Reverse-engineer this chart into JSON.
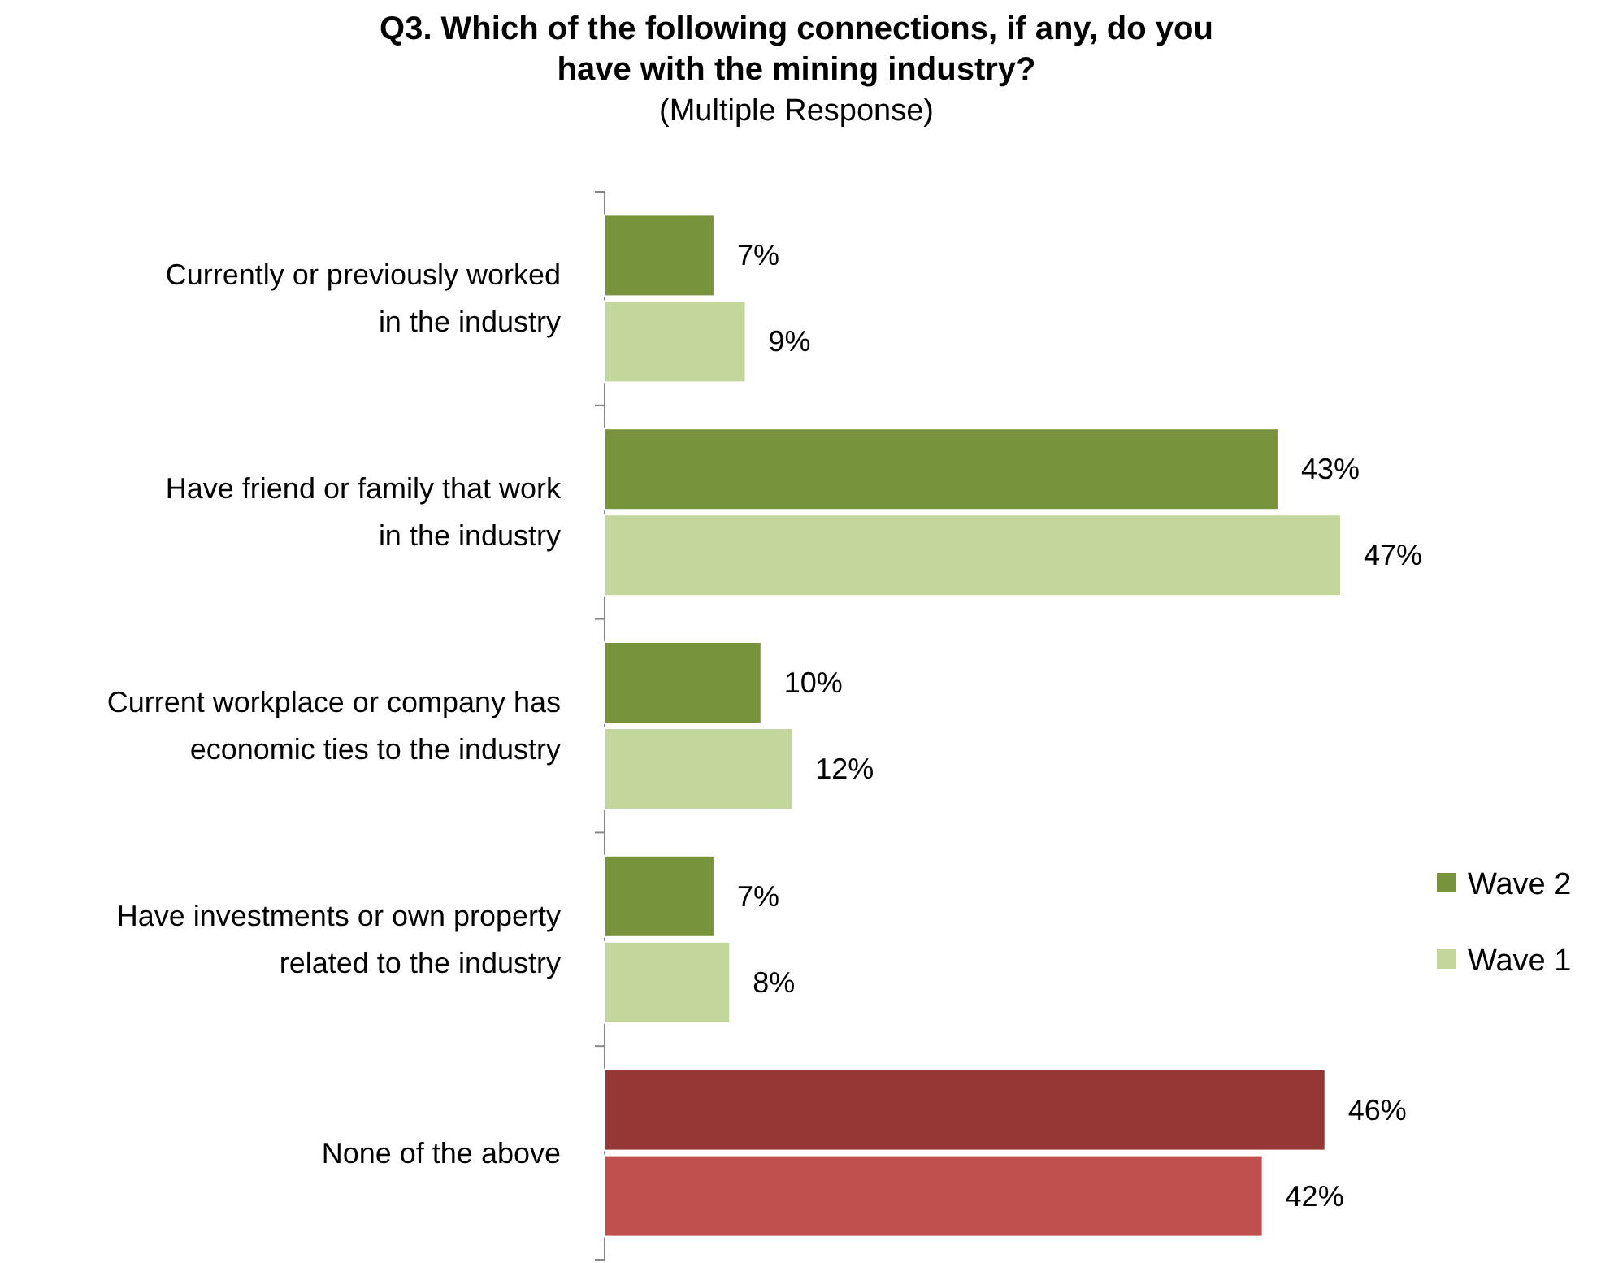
{
  "chart_data": {
    "type": "bar",
    "orientation": "horizontal",
    "title": "Q3. Which of the following connections, if any, do you have with the mining industry?",
    "subtitle": "(Multiple Response)",
    "categories": [
      "Currently or previously worked in the industry",
      "Have friend or family that work in the industry",
      "Current workplace or company has economic ties to the industry",
      "Have investments or own property related to the industry",
      "None of the above"
    ],
    "series": [
      {
        "name": "Wave 2",
        "color": "#77933c",
        "colors": [
          "#77933c",
          "#77933c",
          "#77933c",
          "#77933c",
          "#953735"
        ],
        "values": [
          7,
          43,
          10,
          7,
          46
        ],
        "value_labels": [
          "7%",
          "43%",
          "10%",
          "7%",
          "46%"
        ]
      },
      {
        "name": "Wave 1",
        "color": "#c3d69b",
        "colors": [
          "#c3d69b",
          "#c3d69b",
          "#c3d69b",
          "#c3d69b",
          "#c0504d"
        ],
        "values": [
          9,
          47,
          12,
          8,
          42
        ],
        "value_labels": [
          "9%",
          "47%",
          "12%",
          "8%",
          "42%"
        ]
      }
    ],
    "legend": "right"
  }
}
